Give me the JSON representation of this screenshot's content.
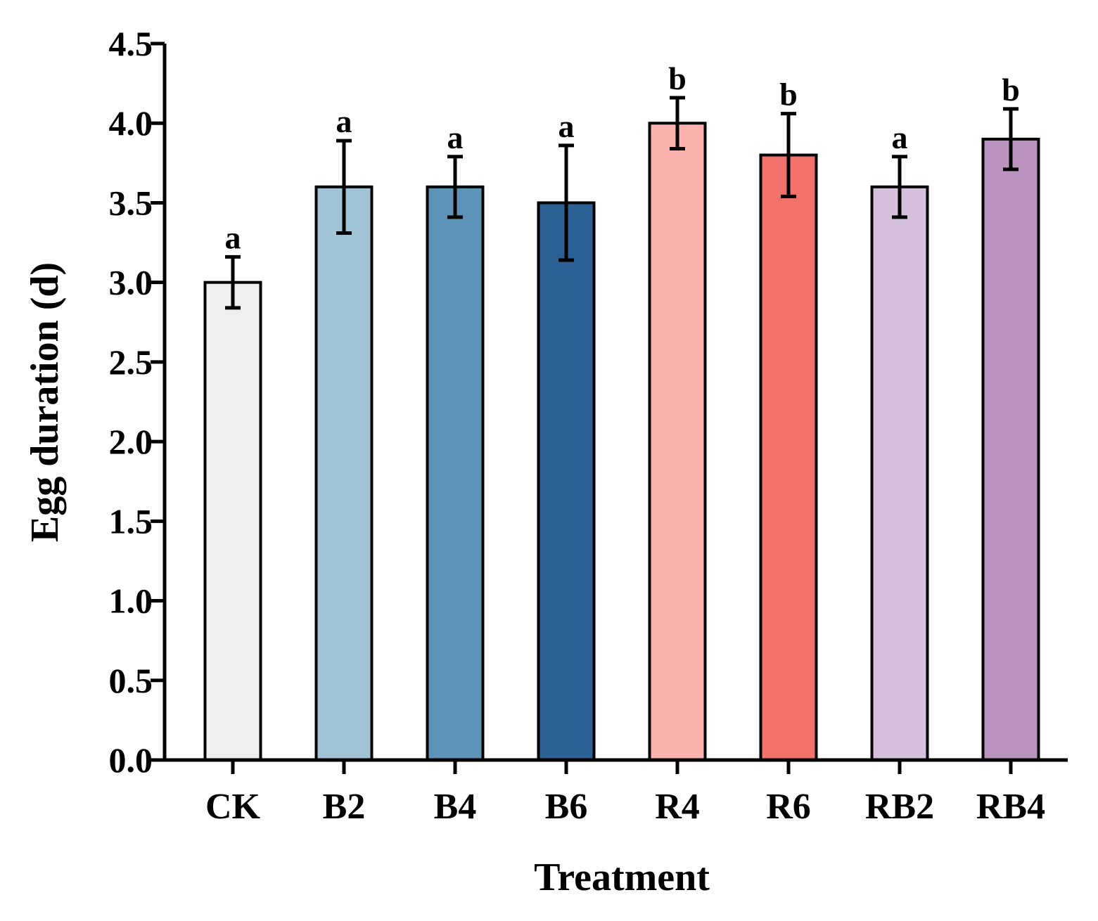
{
  "chart_data": {
    "type": "bar",
    "xlabel": "Treatment",
    "ylabel": "Egg duration (d)",
    "ylim": [
      0,
      4.5
    ],
    "yticks": [
      "0.0",
      "0.5",
      "1.0",
      "1.5",
      "2.0",
      "2.5",
      "3.0",
      "3.5",
      "4.0",
      "4.5"
    ],
    "categories": [
      "CK",
      "B2",
      "B4",
      "B6",
      "R4",
      "R6",
      "RB2",
      "RB4"
    ],
    "values": [
      3.0,
      3.6,
      3.6,
      3.5,
      4.0,
      3.8,
      3.6,
      3.9
    ],
    "errors": [
      0.16,
      0.29,
      0.19,
      0.36,
      0.16,
      0.26,
      0.19,
      0.19
    ],
    "significance": [
      "a",
      "a",
      "a",
      "a",
      "b",
      "b",
      "a",
      "b"
    ],
    "colors": [
      "#efefef",
      "#a0c3d6",
      "#5e93b8",
      "#2b6195",
      "#fdb3ad",
      "#f3716b",
      "#d5c1db",
      "#bb93bf"
    ],
    "grid": false,
    "legend": "none"
  }
}
